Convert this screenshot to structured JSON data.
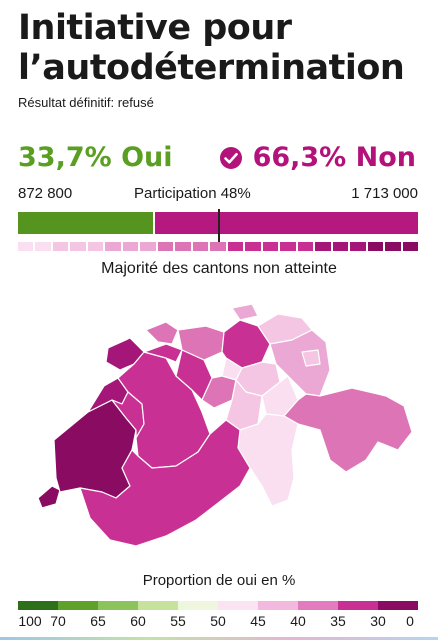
{
  "title": "Initiative pour l’autodétermination",
  "subtitle": "Résultat définitif: refusé",
  "results": {
    "yes_label": "33,7% Oui",
    "no_label": "66,3% Non",
    "yes_votes": "872 800",
    "no_votes": "1 713 000",
    "participation": "Participation 48%",
    "yes_fraction": 0.337,
    "no_fraction": 0.663,
    "winner": "Non"
  },
  "cantons_note": "Majorité des cantons non atteinte",
  "canton_bar_colors": [
    "#f9dff0",
    "#f9dff0",
    "#f5c6e3",
    "#f5c6e3",
    "#f5c6e3",
    "#eba8d4",
    "#eba8d4",
    "#eba8d4",
    "#dd74b5",
    "#dd74b5",
    "#dd74b5",
    "#dd74b5",
    "#c93093",
    "#c93093",
    "#c93093",
    "#c93093",
    "#c93093",
    "#a41678",
    "#a41678",
    "#a41678",
    "#8a0c62",
    "#8a0c62",
    "#8a0c62"
  ],
  "legend": {
    "title": "Proportion de oui en %",
    "labels": [
      "100",
      "70",
      "65",
      "60",
      "55",
      "50",
      "45",
      "40",
      "35",
      "30",
      "0"
    ],
    "colors": [
      "#2e6f1a",
      "#5ea12b",
      "#8cc35b",
      "#c6e29c",
      "#eef6dd",
      "#fbe4f2",
      "#f2b8dd",
      "#e27cbf",
      "#c93093",
      "#8a0c62"
    ]
  },
  "colors": {
    "yes": "#55951f",
    "no": "#b5197f",
    "check_icon": "#b3127a",
    "background": "#ffffff"
  },
  "icons": {
    "winner": "check-circle-icon"
  }
}
